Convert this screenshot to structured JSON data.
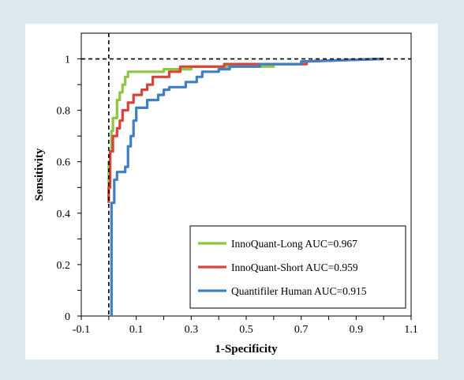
{
  "chart_data": {
    "type": "line",
    "title": "",
    "xlabel": "1-Specificity",
    "ylabel": "Sensitivity",
    "xlim": [
      -0.1,
      1.1
    ],
    "ylim": [
      0,
      1.1
    ],
    "x_ticks": [
      -0.1,
      0.1,
      0.3,
      0.5,
      0.7,
      0.9,
      1.1
    ],
    "x_tick_labels": [
      "-0.1",
      "0.1",
      "0.3",
      "0.5",
      "0.7",
      "0.9",
      "1.1"
    ],
    "y_ticks": [
      0,
      0.2,
      0.4,
      0.6,
      0.8,
      1
    ],
    "y_tick_labels": [
      "0",
      "0.2",
      "0.4",
      "0.6",
      "0.8",
      "1"
    ],
    "grid": false,
    "legend_position": "bottom-right",
    "reference_lines": [
      {
        "orientation": "vertical",
        "value": 0,
        "style": "dashed",
        "color": "#000000"
      },
      {
        "orientation": "horizontal",
        "value": 1,
        "style": "dashed",
        "color": "#000000"
      }
    ],
    "series": [
      {
        "name": "InnoQuant-Long AUC=0.967",
        "color": "#8dc63f",
        "points": [
          [
            0,
            0.44
          ],
          [
            0,
            0.6
          ],
          [
            0.005,
            0.6
          ],
          [
            0.005,
            0.64
          ],
          [
            0.01,
            0.64
          ],
          [
            0.01,
            0.72
          ],
          [
            0.015,
            0.72
          ],
          [
            0.015,
            0.77
          ],
          [
            0.03,
            0.77
          ],
          [
            0.03,
            0.84
          ],
          [
            0.04,
            0.84
          ],
          [
            0.04,
            0.87
          ],
          [
            0.05,
            0.87
          ],
          [
            0.05,
            0.9
          ],
          [
            0.06,
            0.9
          ],
          [
            0.06,
            0.93
          ],
          [
            0.07,
            0.93
          ],
          [
            0.07,
            0.95
          ],
          [
            0.2,
            0.95
          ],
          [
            0.2,
            0.96
          ],
          [
            0.3,
            0.96
          ],
          [
            0.3,
            0.97
          ],
          [
            0.6,
            0.97
          ],
          [
            0.6,
            0.98
          ],
          [
            0.7,
            0.98
          ],
          [
            0.7,
            0.99
          ],
          [
            1,
            1
          ]
        ]
      },
      {
        "name": "InnoQuant-Short AUC=0.959",
        "color": "#d9443a",
        "points": [
          [
            0,
            0.44
          ],
          [
            0,
            0.5
          ],
          [
            0.005,
            0.5
          ],
          [
            0.005,
            0.64
          ],
          [
            0.015,
            0.64
          ],
          [
            0.015,
            0.7
          ],
          [
            0.03,
            0.7
          ],
          [
            0.03,
            0.73
          ],
          [
            0.04,
            0.73
          ],
          [
            0.04,
            0.76
          ],
          [
            0.05,
            0.76
          ],
          [
            0.05,
            0.8
          ],
          [
            0.07,
            0.8
          ],
          [
            0.07,
            0.83
          ],
          [
            0.09,
            0.83
          ],
          [
            0.09,
            0.86
          ],
          [
            0.12,
            0.86
          ],
          [
            0.12,
            0.88
          ],
          [
            0.14,
            0.88
          ],
          [
            0.14,
            0.9
          ],
          [
            0.16,
            0.9
          ],
          [
            0.16,
            0.93
          ],
          [
            0.22,
            0.93
          ],
          [
            0.22,
            0.95
          ],
          [
            0.26,
            0.95
          ],
          [
            0.26,
            0.97
          ],
          [
            0.42,
            0.97
          ],
          [
            0.42,
            0.98
          ],
          [
            0.72,
            0.98
          ],
          [
            0.72,
            0.99
          ],
          [
            1,
            1
          ]
        ]
      },
      {
        "name": "Quantifiler Human AUC=0.915",
        "color": "#3f7fc3",
        "points": [
          [
            0.01,
            0
          ],
          [
            0.01,
            0.44
          ],
          [
            0.02,
            0.44
          ],
          [
            0.02,
            0.53
          ],
          [
            0.03,
            0.53
          ],
          [
            0.03,
            0.56
          ],
          [
            0.06,
            0.56
          ],
          [
            0.06,
            0.58
          ],
          [
            0.07,
            0.58
          ],
          [
            0.07,
            0.66
          ],
          [
            0.08,
            0.66
          ],
          [
            0.08,
            0.7
          ],
          [
            0.09,
            0.7
          ],
          [
            0.09,
            0.76
          ],
          [
            0.1,
            0.76
          ],
          [
            0.1,
            0.81
          ],
          [
            0.14,
            0.81
          ],
          [
            0.14,
            0.84
          ],
          [
            0.18,
            0.84
          ],
          [
            0.18,
            0.86
          ],
          [
            0.2,
            0.86
          ],
          [
            0.2,
            0.88
          ],
          [
            0.22,
            0.88
          ],
          [
            0.22,
            0.89
          ],
          [
            0.28,
            0.89
          ],
          [
            0.28,
            0.91
          ],
          [
            0.32,
            0.91
          ],
          [
            0.32,
            0.93
          ],
          [
            0.34,
            0.93
          ],
          [
            0.34,
            0.95
          ],
          [
            0.4,
            0.95
          ],
          [
            0.4,
            0.96
          ],
          [
            0.44,
            0.96
          ],
          [
            0.44,
            0.97
          ],
          [
            0.55,
            0.97
          ],
          [
            0.55,
            0.98
          ],
          [
            0.7,
            0.98
          ],
          [
            0.7,
            0.99
          ],
          [
            1,
            1
          ]
        ]
      }
    ]
  }
}
